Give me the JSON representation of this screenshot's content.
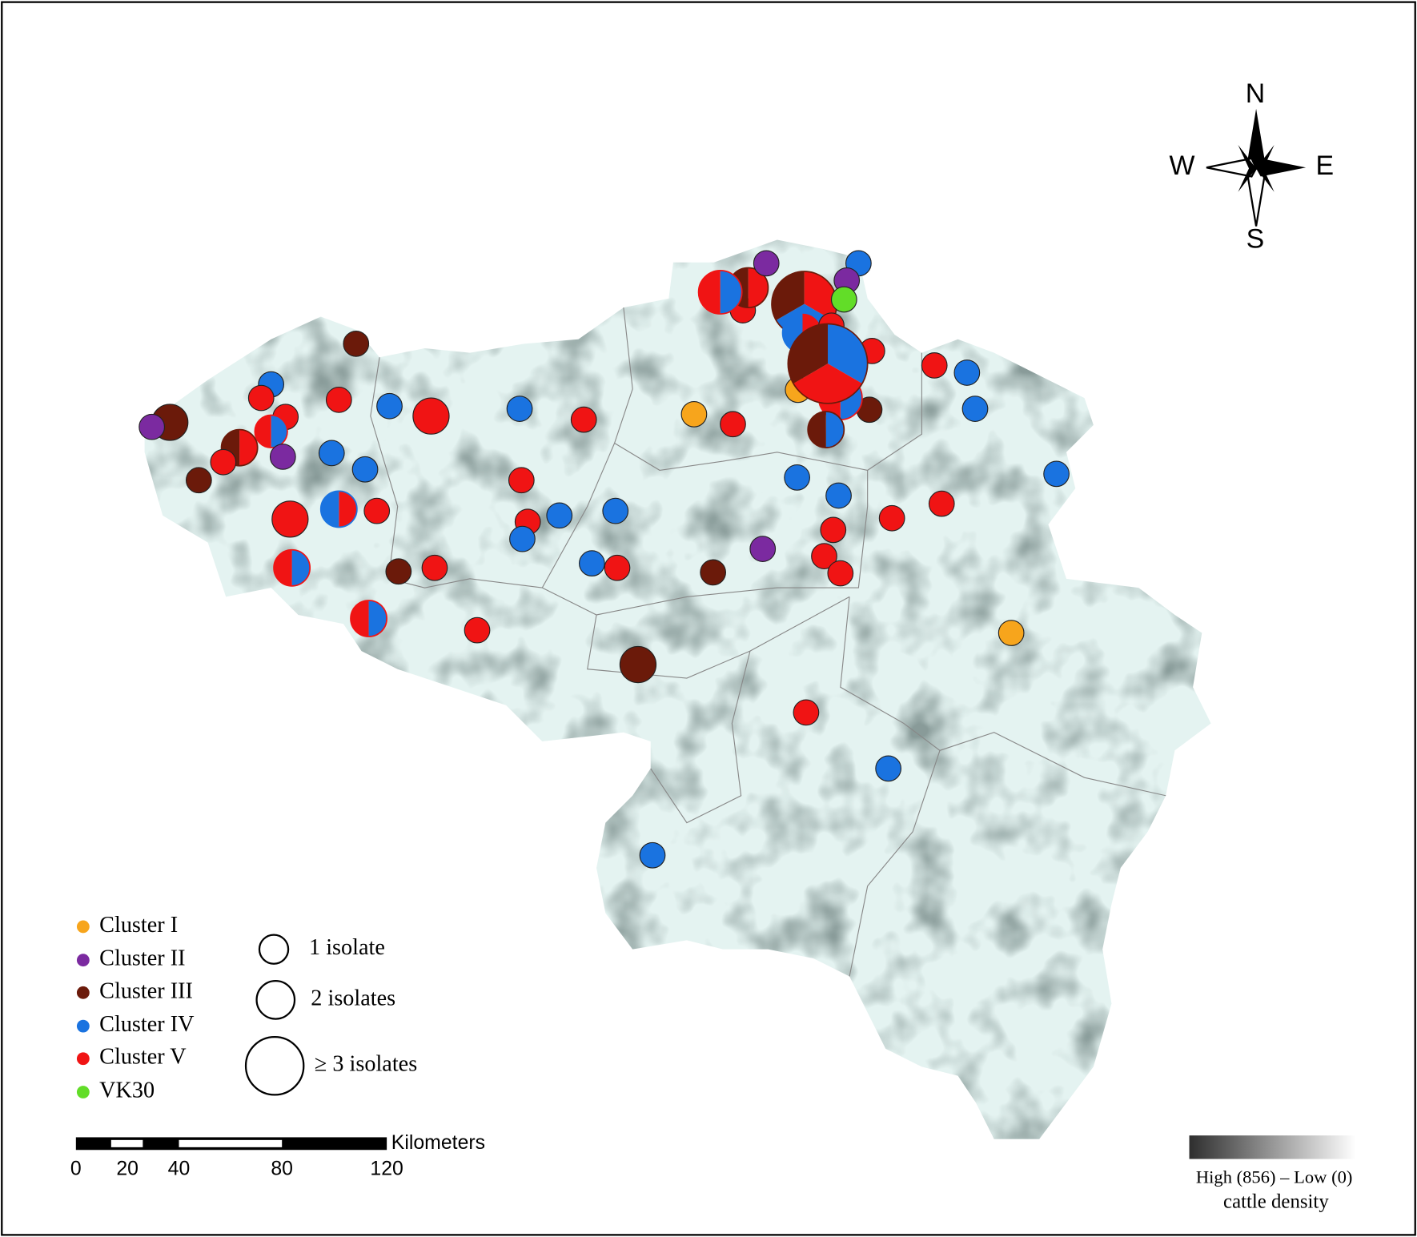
{
  "compass": {
    "north": "N",
    "east": "E",
    "south": "S",
    "west": "W"
  },
  "legend": {
    "clusters": [
      {
        "label": "Cluster I",
        "color": "#f7a51c"
      },
      {
        "label": "Cluster II",
        "color": "#7b2aa0"
      },
      {
        "label": "Cluster III",
        "color": "#6b1a0a"
      },
      {
        "label": "Cluster IV",
        "color": "#1a73e0"
      },
      {
        "label": "Cluster V",
        "color": "#f01414"
      },
      {
        "label": "VK30",
        "color": "#62dd28"
      }
    ],
    "sizes": [
      "1 isolate",
      "2 isolates",
      "≥ 3 isolates"
    ]
  },
  "scale_bar": {
    "unit": "Kilometers",
    "ticks": [
      "0",
      "20",
      "40",
      "80",
      "120"
    ]
  },
  "density_legend": {
    "range": "High (856) – Low (0)",
    "caption": "cattle density"
  }
}
